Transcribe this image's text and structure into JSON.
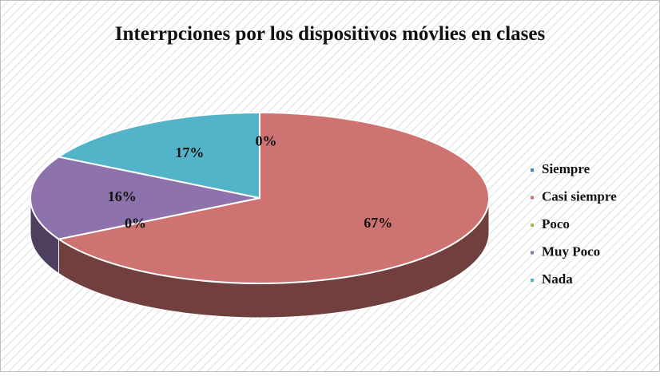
{
  "chart_data": {
    "type": "pie",
    "title": "Interrpciones por los dispositivos móvlies en clases",
    "categories": [
      "Siempre",
      "Casi siempre",
      "Poco",
      "Muy Poco",
      "Nada"
    ],
    "values": [
      0,
      67,
      0,
      16,
      17
    ],
    "value_labels": [
      "0%",
      "67%",
      "0%",
      "16%",
      "17%"
    ],
    "colors": [
      "#4f81bd",
      "#cd7371",
      "#9bbb59",
      "#8d72ab",
      "#52b3c9"
    ],
    "legend": "right"
  }
}
